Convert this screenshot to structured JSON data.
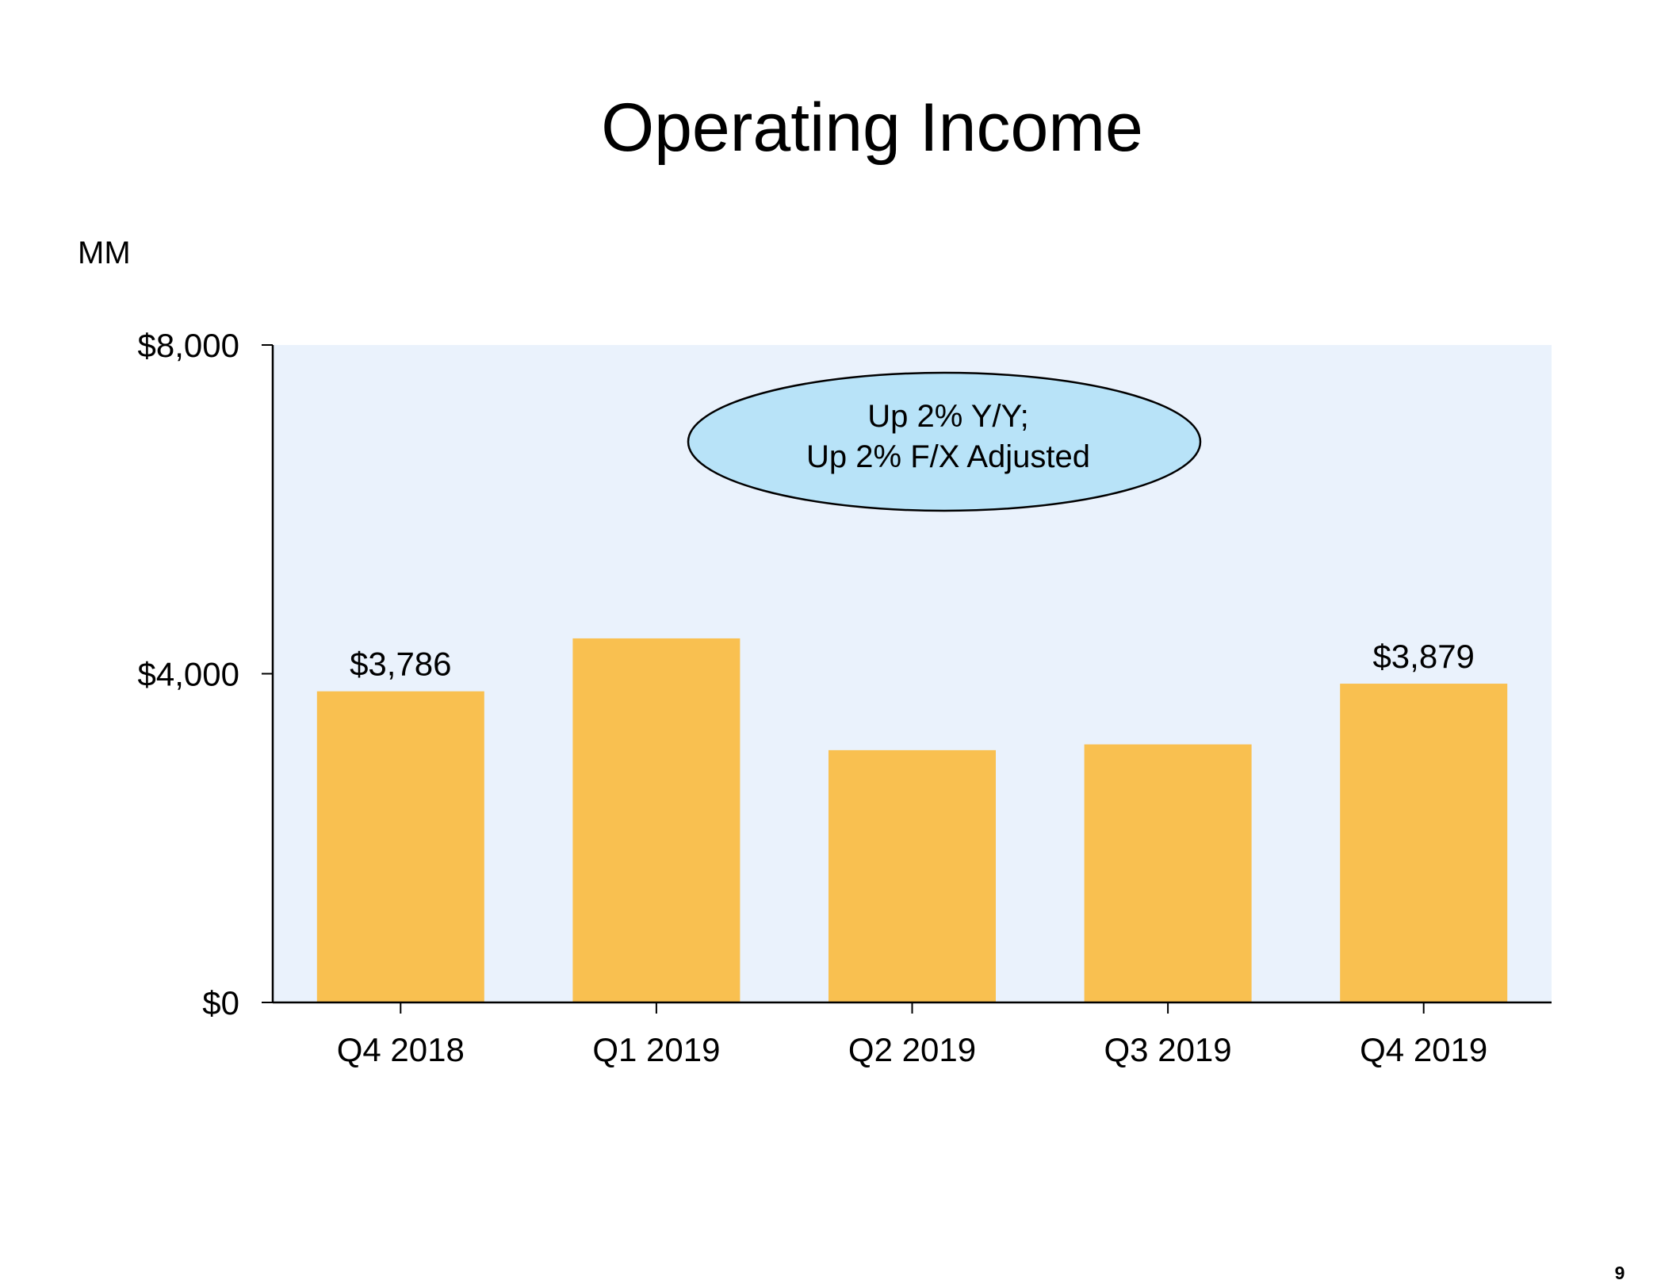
{
  "slide": {
    "title": "Operating Income",
    "unit_label": "MM",
    "page_number": "9",
    "callout": {
      "line1": "Up 2% Y/Y;",
      "line2": "Up 2% F/X Adjusted"
    }
  },
  "colors": {
    "bar": "#F9C050",
    "plot_background": "#EAF2FC",
    "callout_fill": "#B8E3F8",
    "text": "#000000"
  },
  "chart_data": {
    "type": "bar",
    "title": "Operating Income",
    "ylabel": "MM",
    "xlabel": "",
    "ylim": [
      0,
      8000
    ],
    "yticks": [
      {
        "value": 0,
        "label": "$0"
      },
      {
        "value": 4000,
        "label": "$4,000"
      },
      {
        "value": 8000,
        "label": "$8,000"
      }
    ],
    "categories": [
      "Q4 2018",
      "Q1 2019",
      "Q2 2019",
      "Q3 2019",
      "Q4 2019"
    ],
    "values": [
      3786,
      4430,
      3070,
      3140,
      3879
    ],
    "data_labels": [
      "$3,786",
      "",
      "",
      "",
      "$3,879"
    ],
    "grid": false,
    "legend": "none"
  }
}
